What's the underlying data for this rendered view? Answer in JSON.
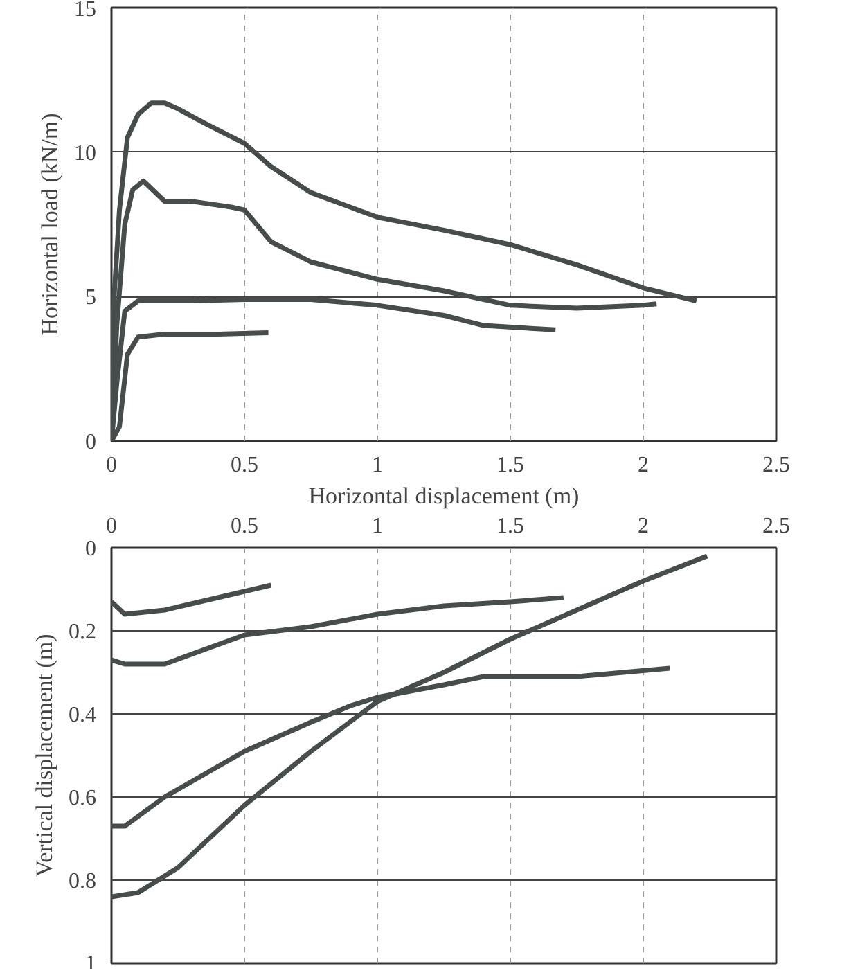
{
  "chart_data": [
    {
      "type": "line",
      "xlabel": "Horizontal displacement (m)",
      "ylabel": "Horizontal load (kN/m)",
      "xlim": [
        0,
        2.5
      ],
      "xticks": [
        0,
        0.5,
        1,
        1.5,
        2,
        2.5
      ],
      "ylim": [
        0,
        15
      ],
      "yticks": [
        0,
        5,
        10,
        15
      ],
      "grid": true,
      "line_style": "solid",
      "series": [
        {
          "color": "#474c4d",
          "x": [
            0,
            0.01,
            0.03,
            0.06,
            0.1,
            0.15,
            0.2,
            0.25,
            0.35,
            0.5,
            0.6,
            0.75,
            1.0,
            1.25,
            1.5,
            1.75,
            2.0,
            2.2
          ],
          "values": [
            0,
            5,
            8,
            10.5,
            11.3,
            11.7,
            11.7,
            11.5,
            11,
            10.3,
            9.5,
            8.6,
            7.75,
            7.3,
            6.8,
            6.1,
            5.3,
            4.85
          ]
        },
        {
          "color": "#474c4d",
          "x": [
            0,
            0.02,
            0.05,
            0.08,
            0.12,
            0.2,
            0.3,
            0.45,
            0.5,
            0.6,
            0.75,
            1.0,
            1.25,
            1.5,
            1.75,
            2.0,
            2.05
          ],
          "values": [
            0,
            4,
            7.5,
            8.7,
            9.0,
            8.3,
            8.3,
            8.1,
            8.0,
            6.9,
            6.2,
            5.6,
            5.2,
            4.7,
            4.6,
            4.7,
            4.75
          ]
        },
        {
          "color": "#474c4d",
          "x": [
            0,
            0.02,
            0.05,
            0.1,
            0.3,
            0.5,
            0.75,
            1.0,
            1.25,
            1.4,
            1.67
          ],
          "values": [
            0,
            2,
            4.5,
            4.85,
            4.85,
            4.9,
            4.9,
            4.7,
            4.35,
            4.0,
            3.85
          ]
        },
        {
          "color": "#474c4d",
          "x": [
            0,
            0.03,
            0.06,
            0.1,
            0.2,
            0.4,
            0.59
          ],
          "values": [
            0,
            0.5,
            3,
            3.6,
            3.7,
            3.7,
            3.75
          ]
        }
      ]
    },
    {
      "type": "line",
      "ylabel": "Vertical displacement (m)",
      "xlim": [
        0,
        2.5
      ],
      "x2lim": [
        0,
        2.5
      ],
      "x2ticks": [
        0,
        0.5,
        1,
        1.5,
        2,
        2.5
      ],
      "ylim": [
        1,
        0
      ],
      "yticks": [
        0,
        0.2,
        0.4,
        0.6,
        0.8,
        1
      ],
      "grid": true,
      "line_style": "solid",
      "series": [
        {
          "color": "#474c4d",
          "x": [
            0,
            0.05,
            0.2,
            0.4,
            0.6
          ],
          "values": [
            0.13,
            0.16,
            0.15,
            0.12,
            0.09
          ]
        },
        {
          "color": "#474c4d",
          "x": [
            0,
            0.05,
            0.2,
            0.5,
            0.75,
            1.0,
            1.25,
            1.5,
            1.7
          ],
          "values": [
            0.27,
            0.28,
            0.28,
            0.21,
            0.19,
            0.16,
            0.14,
            0.13,
            0.12
          ]
        },
        {
          "color": "#474c4d",
          "x": [
            0,
            0.05,
            0.2,
            0.5,
            0.75,
            0.9,
            1.0,
            1.25,
            1.4,
            1.75,
            2.1
          ],
          "values": [
            0.67,
            0.67,
            0.6,
            0.49,
            0.42,
            0.38,
            0.36,
            0.33,
            0.31,
            0.31,
            0.29
          ]
        },
        {
          "color": "#474c4d",
          "x": [
            0,
            0.1,
            0.25,
            0.5,
            0.75,
            1.0,
            1.25,
            1.5,
            1.75,
            2.0,
            2.24
          ],
          "values": [
            0.84,
            0.83,
            0.77,
            0.62,
            0.49,
            0.37,
            0.3,
            0.22,
            0.15,
            0.08,
            0.02
          ]
        }
      ]
    }
  ]
}
